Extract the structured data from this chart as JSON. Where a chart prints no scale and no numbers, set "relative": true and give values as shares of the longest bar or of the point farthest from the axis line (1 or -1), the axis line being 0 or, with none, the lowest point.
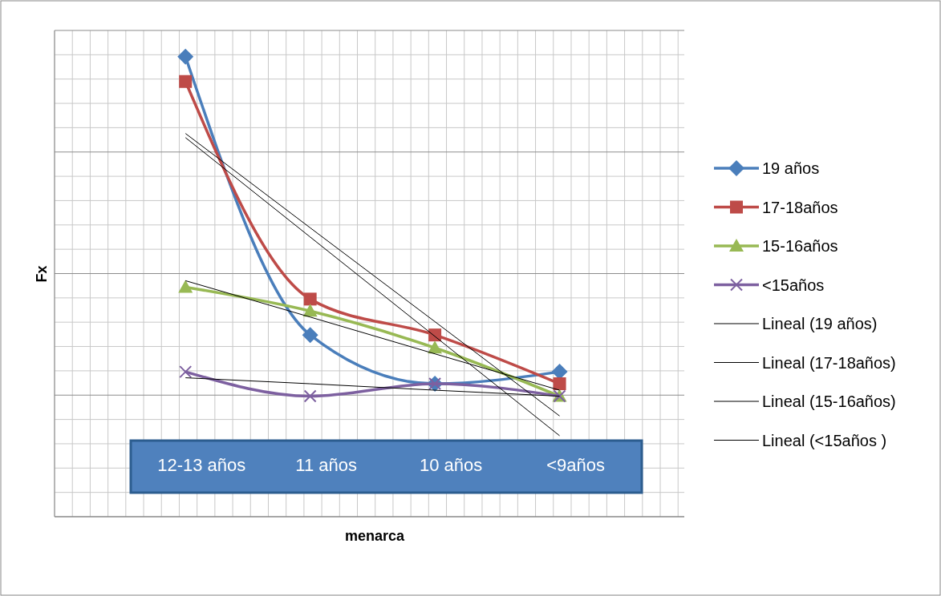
{
  "chart_data": {
    "type": "line",
    "relative": true,
    "xlabel": "menarca",
    "ylabel": "Fx",
    "categories": [
      "12-13 años",
      "11 años",
      "10 años",
      "<9años"
    ],
    "grid": true,
    "legend": "right",
    "series": [
      {
        "name": "19 años",
        "color": "#4a7ebb",
        "marker": "diamond",
        "values": [
          1,
          0.395,
          0.289,
          0.315
        ]
      },
      {
        "name": "17-18años",
        "color": "#be4b48",
        "marker": "square",
        "values": [
          0.946,
          0.473,
          0.395,
          0.289
        ]
      },
      {
        "name": "15-16años",
        "color": "#98b954",
        "marker": "triangle",
        "values": [
          0.499,
          0.447,
          0.367,
          0.262
        ]
      },
      {
        "name": "<15años",
        "color": "#7d60a0",
        "marker": "cross",
        "values": [
          0.315,
          0.262,
          0.289,
          0.262
        ]
      },
      {
        "name": "Lineal (19 años)",
        "color": "#000000",
        "marker": "none",
        "values": [
          0.824,
          0.608,
          0.392,
          0.176
        ]
      },
      {
        "name": "Lineal (17-18años)",
        "color": "#000000",
        "marker": "none",
        "values": [
          0.833,
          0.628,
          0.424,
          0.219
        ]
      },
      {
        "name": "Lineal (15-16años)",
        "color": "#000000",
        "marker": "none",
        "values": [
          0.513,
          0.434,
          0.354,
          0.275
        ]
      },
      {
        "name": "Lineal (<15años )",
        "color": "#000000",
        "marker": "none",
        "values": [
          0.302,
          0.289,
          0.275,
          0.262
        ]
      }
    ]
  }
}
